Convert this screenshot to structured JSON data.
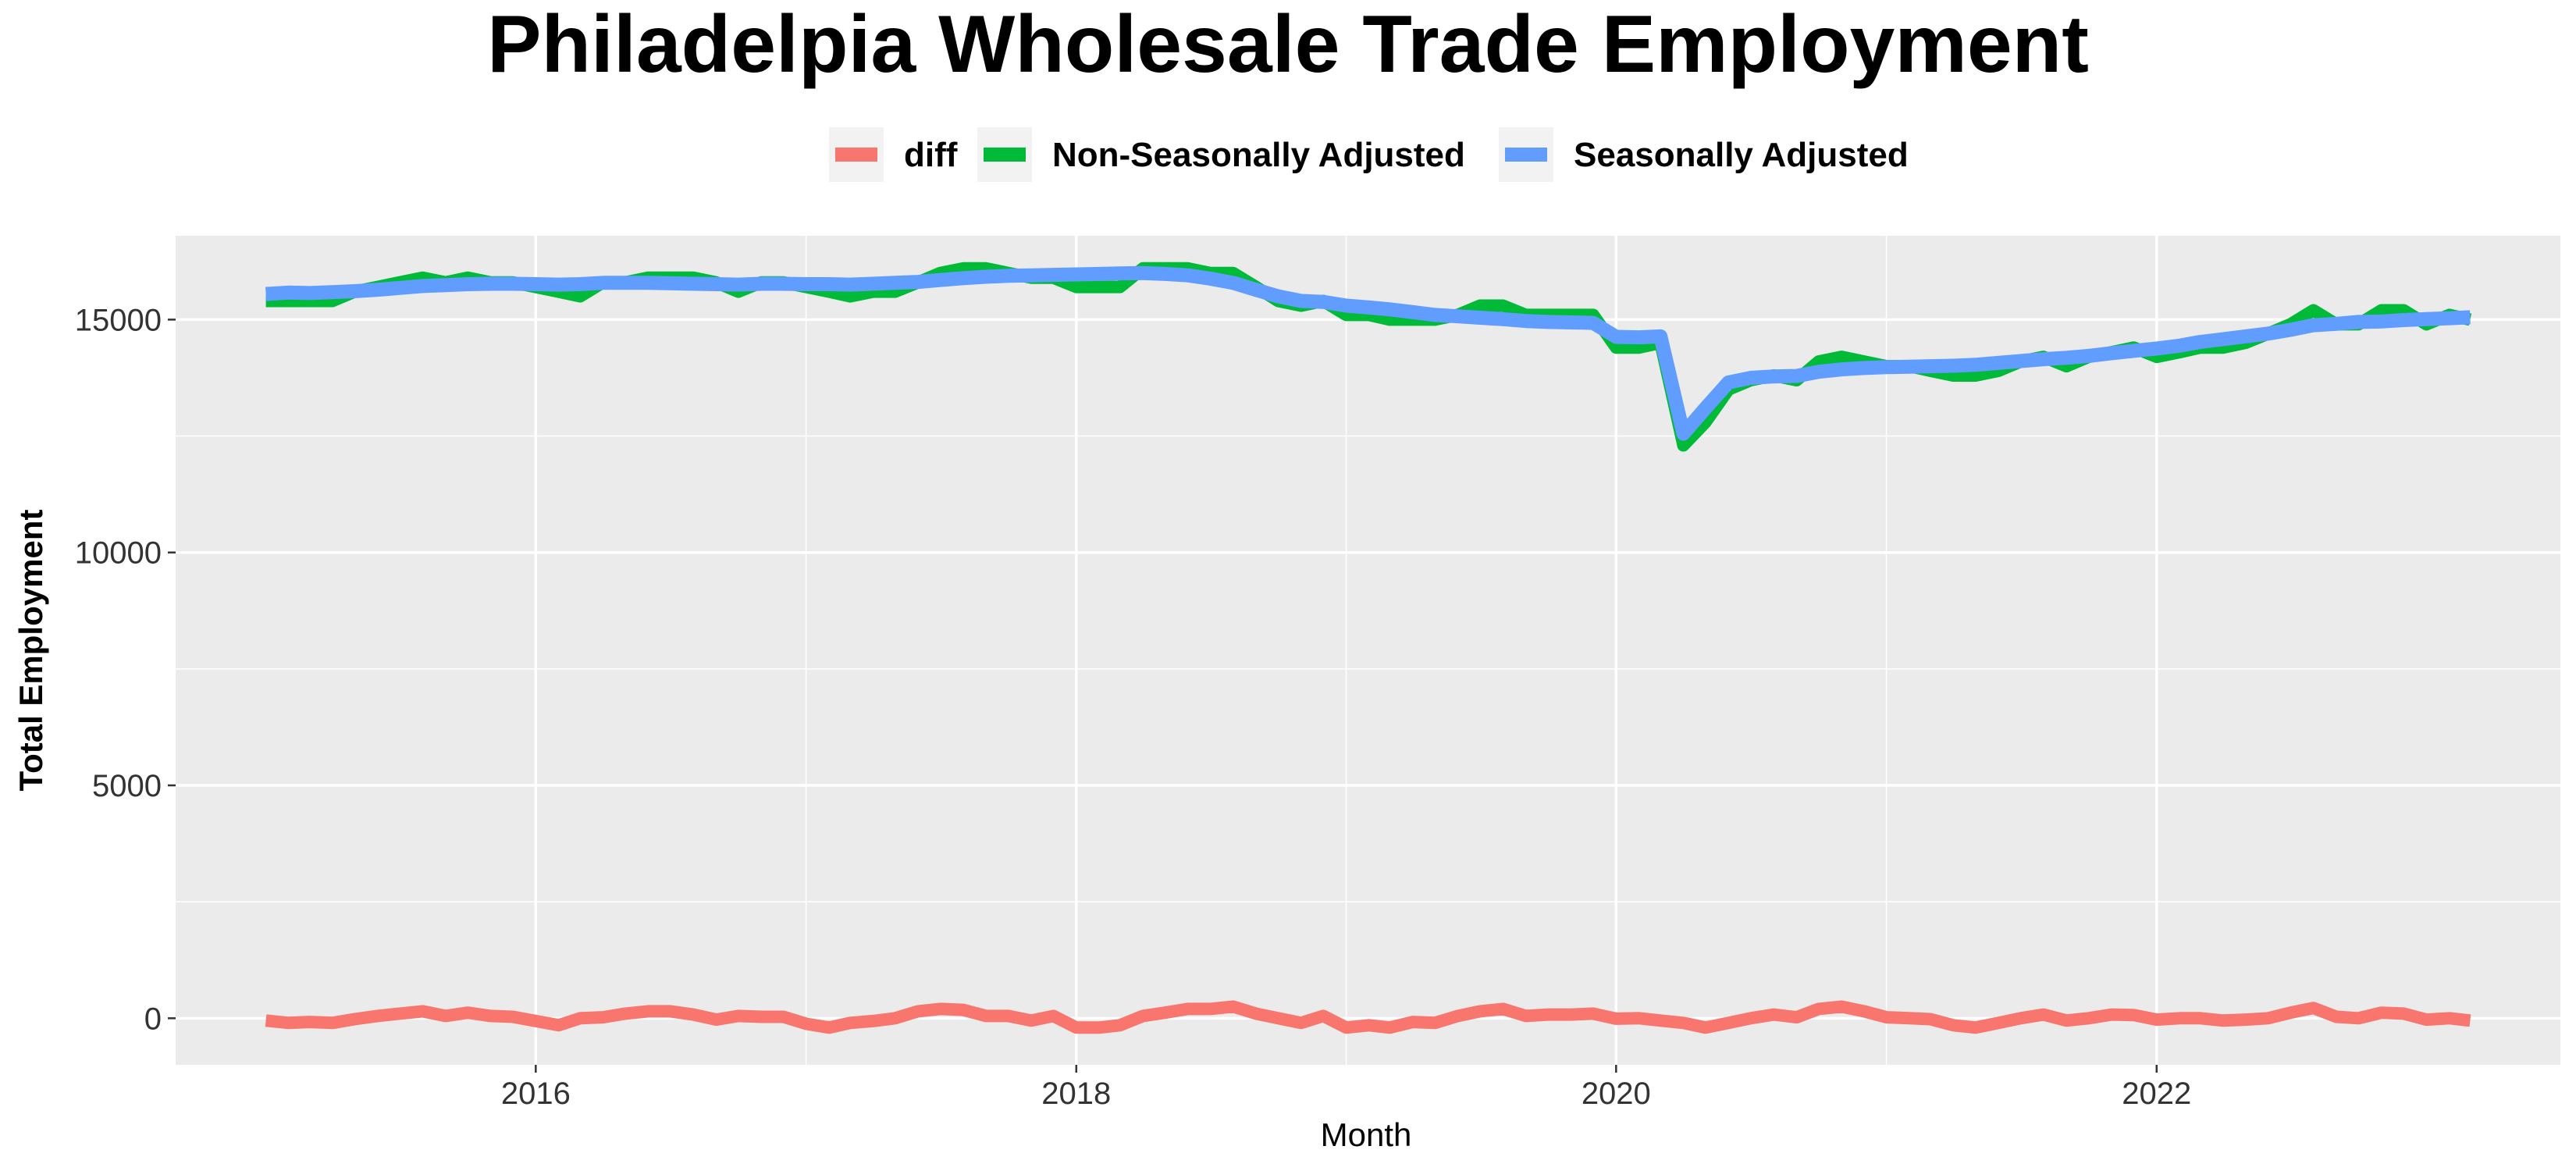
{
  "chart_data": {
    "type": "line",
    "title": "Philadelpia Wholesale Trade Employment",
    "xlabel": "Month",
    "ylabel": "Total Employment",
    "ylim": [
      -1000,
      16800
    ],
    "y_ticks": [
      0,
      5000,
      10000,
      15000
    ],
    "y_tick_labels": [
      "0",
      "5000",
      "10000",
      "15000"
    ],
    "x_range": [
      "2014-09-01",
      "2023-07-01"
    ],
    "x_ticks": [
      "2016-01-01",
      "2018-01-01",
      "2020-01-01",
      "2022-01-01"
    ],
    "x_tick_labels": [
      "2016",
      "2018",
      "2020",
      "2022"
    ],
    "grid": true,
    "legend_position": "top",
    "x": [
      "2015-01",
      "2015-02",
      "2015-03",
      "2015-04",
      "2015-05",
      "2015-06",
      "2015-07",
      "2015-08",
      "2015-09",
      "2015-10",
      "2015-11",
      "2015-12",
      "2016-01",
      "2016-02",
      "2016-03",
      "2016-04",
      "2016-05",
      "2016-06",
      "2016-07",
      "2016-08",
      "2016-09",
      "2016-10",
      "2016-11",
      "2016-12",
      "2017-01",
      "2017-02",
      "2017-03",
      "2017-04",
      "2017-05",
      "2017-06",
      "2017-07",
      "2017-08",
      "2017-09",
      "2017-10",
      "2017-11",
      "2017-12",
      "2018-01",
      "2018-02",
      "2018-03",
      "2018-04",
      "2018-05",
      "2018-06",
      "2018-07",
      "2018-08",
      "2018-09",
      "2018-10",
      "2018-11",
      "2018-12",
      "2019-01",
      "2019-02",
      "2019-03",
      "2019-04",
      "2019-05",
      "2019-06",
      "2019-07",
      "2019-08",
      "2019-09",
      "2019-10",
      "2019-11",
      "2019-12",
      "2020-01",
      "2020-02",
      "2020-03",
      "2020-04",
      "2020-05",
      "2020-06",
      "2020-07",
      "2020-08",
      "2020-09",
      "2020-10",
      "2020-11",
      "2020-12",
      "2021-01",
      "2021-02",
      "2021-03",
      "2021-04",
      "2021-05",
      "2021-06",
      "2021-07",
      "2021-08",
      "2021-09",
      "2021-10",
      "2021-11",
      "2021-12",
      "2022-01",
      "2022-02",
      "2022-03",
      "2022-04",
      "2022-05",
      "2022-06",
      "2022-07",
      "2022-08",
      "2022-09",
      "2022-10",
      "2022-11",
      "2022-12",
      "2023-01",
      "2023-02",
      "2023-03"
    ],
    "series": [
      {
        "name": "diff",
        "color": "#F8766D",
        "values": [
          -50,
          -100,
          -80,
          -100,
          -20,
          50,
          100,
          150,
          50,
          120,
          50,
          30,
          -60,
          -150,
          0,
          20,
          100,
          150,
          150,
          80,
          -30,
          50,
          30,
          30,
          -120,
          -200,
          -100,
          -60,
          0,
          150,
          200,
          180,
          50,
          50,
          -50,
          50,
          -200,
          -200,
          -150,
          50,
          120,
          200,
          200,
          250,
          100,
          0,
          -100,
          50,
          -200,
          -150,
          -200,
          -80,
          -100,
          50,
          150,
          200,
          50,
          80,
          80,
          100,
          -10,
          0,
          -50,
          -100,
          -200,
          -100,
          0,
          80,
          20,
          200,
          250,
          150,
          20,
          0,
          -20,
          -150,
          -200,
          -100,
          0,
          80,
          -50,
          0,
          80,
          70,
          -30,
          0,
          0,
          -50,
          -30,
          0,
          120,
          220,
          30,
          0,
          120,
          100,
          -30,
          0,
          -50
        ]
      },
      {
        "name": "Non-Seasonally Adjusted",
        "color": "#00BA38",
        "values": [
          15400,
          15400,
          15400,
          15400,
          15600,
          15700,
          15800,
          15900,
          15800,
          15900,
          15800,
          15800,
          15700,
          15600,
          15500,
          15800,
          15800,
          15900,
          15900,
          15900,
          15800,
          15600,
          15800,
          15800,
          15700,
          15600,
          15500,
          15600,
          15600,
          15800,
          16000,
          16100,
          16100,
          16000,
          15900,
          15900,
          15700,
          15700,
          15700,
          16100,
          16100,
          16100,
          16000,
          16000,
          15700,
          15400,
          15300,
          15400,
          15100,
          15100,
          15000,
          15000,
          15000,
          15100,
          15300,
          15300,
          15100,
          15100,
          15100,
          15100,
          14400,
          14400,
          14500,
          12300,
          12800,
          13500,
          13700,
          13800,
          13700,
          14100,
          14200,
          14100,
          14000,
          14000,
          13900,
          13800,
          13800,
          13900,
          14100,
          14200,
          14000,
          14200,
          14300,
          14400,
          14200,
          14300,
          14400,
          14400,
          14500,
          14700,
          14900,
          15200,
          14900,
          14900,
          15200,
          15200,
          14900,
          15100,
          15000
        ]
      },
      {
        "name": "Seasonally Adjusted",
        "color": "#619CFF",
        "values": [
          15550,
          15580,
          15570,
          15590,
          15610,
          15640,
          15680,
          15720,
          15740,
          15760,
          15770,
          15770,
          15760,
          15750,
          15760,
          15790,
          15790,
          15790,
          15780,
          15770,
          15760,
          15750,
          15770,
          15770,
          15760,
          15760,
          15750,
          15770,
          15790,
          15810,
          15850,
          15890,
          15920,
          15940,
          15950,
          15960,
          15970,
          15980,
          15990,
          16000,
          15980,
          15950,
          15880,
          15790,
          15640,
          15500,
          15400,
          15380,
          15300,
          15260,
          15220,
          15160,
          15100,
          15070,
          15040,
          15010,
          14970,
          14950,
          14940,
          14930,
          14630,
          14620,
          14640,
          12550,
          13100,
          13650,
          13750,
          13780,
          13790,
          13880,
          13930,
          13960,
          13980,
          13990,
          14000,
          14010,
          14030,
          14070,
          14110,
          14150,
          14180,
          14220,
          14280,
          14330,
          14380,
          14440,
          14520,
          14580,
          14640,
          14700,
          14780,
          14880,
          14910,
          14950,
          14960,
          14990,
          15010,
          15030,
          15050
        ]
      }
    ]
  }
}
